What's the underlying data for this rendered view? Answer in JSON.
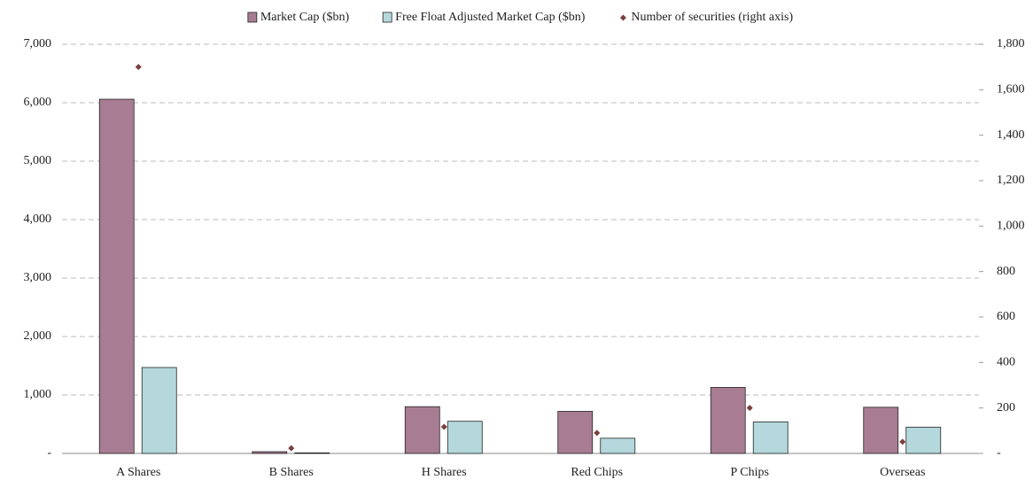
{
  "chart_data": {
    "type": "bar",
    "categories": [
      "A Shares",
      "B Shares",
      "H Shares",
      "Red Chips",
      "P Chips",
      "Overseas"
    ],
    "series": [
      {
        "name": "Market Cap ($bn)",
        "color": "#a87c92",
        "values": [
          6060,
          30,
          800,
          720,
          1130,
          790
        ]
      },
      {
        "name": "Free Float Adjusted Market Cap ($bn)",
        "color": "#b4d8dc",
        "values": [
          1470,
          10,
          550,
          260,
          540,
          450
        ]
      },
      {
        "name": "Number of securities (right axis)",
        "color": "#7b3f3f",
        "axis": "y2",
        "values": [
          1700,
          23,
          117,
          90,
          200,
          51
        ]
      }
    ],
    "ylim": [
      0,
      7000
    ],
    "yticks": [
      {
        "value": 0,
        "label": "-"
      },
      {
        "value": 1000,
        "label": "1,000"
      },
      {
        "value": 2000,
        "label": "2,000"
      },
      {
        "value": 3000,
        "label": "3,000"
      },
      {
        "value": 4000,
        "label": "4,000"
      },
      {
        "value": 5000,
        "label": "5,000"
      },
      {
        "value": 6000,
        "label": "6,000"
      },
      {
        "value": 7000,
        "label": "7,000"
      }
    ],
    "y2lim": [
      0,
      1800
    ],
    "y2ticks": [
      {
        "value": 0,
        "label": "-"
      },
      200,
      400,
      600,
      800,
      {
        "value": 1000,
        "label": "1,000"
      },
      {
        "value": 1200,
        "label": "1,200"
      },
      {
        "value": 1400,
        "label": "1,400"
      },
      {
        "value": 1600,
        "label": "1,600"
      },
      {
        "value": 1800,
        "label": "1,800"
      }
    ],
    "grid": true,
    "legend": "top"
  }
}
